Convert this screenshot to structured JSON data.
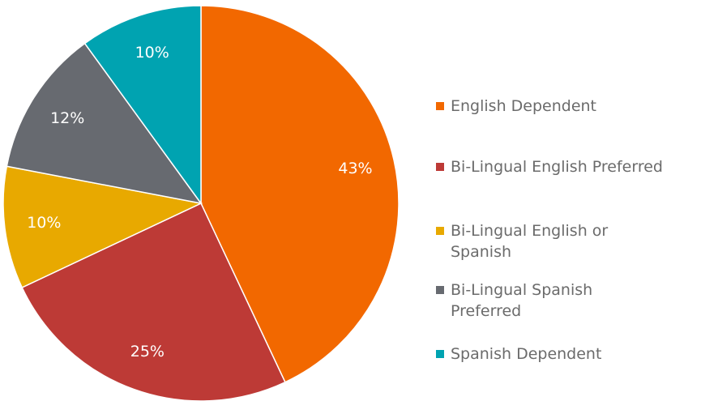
{
  "chart_data": {
    "type": "pie",
    "categories": [
      "English Dependent",
      "Bi-Lingual English Preferred",
      "Bi-Lingual English or Spanish",
      "Bi-Lingual Spanish Preferred",
      "Spanish Dependent"
    ],
    "values": [
      43,
      25,
      10,
      12,
      10
    ],
    "value_labels": [
      "43%",
      "25%",
      "10%",
      "12%",
      "10%"
    ],
    "colors": [
      "#f26800",
      "#bd3a36",
      "#e8a900",
      "#676a70",
      "#00a3b1"
    ],
    "legend": "right"
  }
}
